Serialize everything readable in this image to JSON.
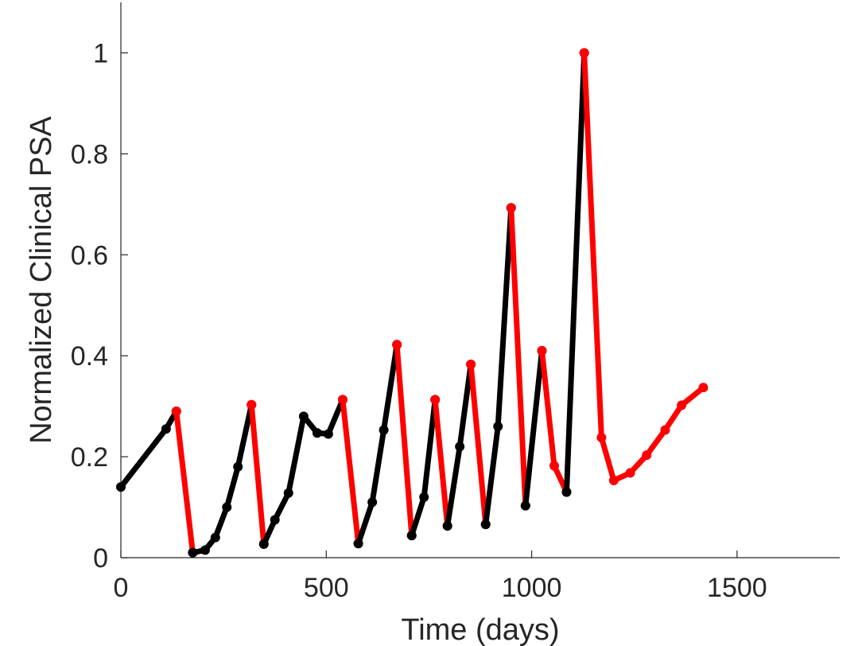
{
  "chart_data": {
    "type": "line",
    "title": "",
    "xlabel": "Time (days)",
    "ylabel": "Normalized Clinical PSA",
    "xlim": [
      0,
      1750
    ],
    "ylim": [
      0,
      1.1
    ],
    "xticks": [
      0,
      500,
      1000,
      1500
    ],
    "xtick_labels": [
      "0",
      "500",
      "1000",
      "1500"
    ],
    "yticks": [
      0,
      0.2,
      0.4,
      0.6,
      0.8,
      1
    ],
    "ytick_labels": [
      "0",
      "0.2",
      "0.4",
      "0.6",
      "0.8",
      "1"
    ],
    "grid": false,
    "legend": "none",
    "colors": {
      "on_treatment": "#ff0000",
      "off_treatment": "#000000",
      "axis": "#262626"
    },
    "series": [
      {
        "color": "#000000",
        "points": [
          [
            0,
            0.14
          ],
          [
            110,
            0.255
          ],
          [
            135,
            0.29
          ]
        ]
      },
      {
        "color": "#ff0000",
        "points": [
          [
            135,
            0.29
          ],
          [
            175,
            0.01
          ]
        ]
      },
      {
        "color": "#000000",
        "points": [
          [
            175,
            0.01
          ],
          [
            205,
            0.015
          ],
          [
            230,
            0.04
          ],
          [
            258,
            0.1
          ],
          [
            285,
            0.18
          ],
          [
            318,
            0.303
          ]
        ]
      },
      {
        "color": "#ff0000",
        "points": [
          [
            318,
            0.303
          ],
          [
            348,
            0.027
          ]
        ]
      },
      {
        "color": "#000000",
        "points": [
          [
            348,
            0.027
          ],
          [
            375,
            0.075
          ],
          [
            408,
            0.128
          ],
          [
            445,
            0.28
          ],
          [
            478,
            0.247
          ],
          [
            505,
            0.245
          ],
          [
            540,
            0.313
          ]
        ]
      },
      {
        "color": "#ff0000",
        "points": [
          [
            540,
            0.313
          ],
          [
            578,
            0.028
          ]
        ]
      },
      {
        "color": "#000000",
        "points": [
          [
            578,
            0.028
          ],
          [
            612,
            0.11
          ],
          [
            640,
            0.253
          ],
          [
            672,
            0.422
          ]
        ]
      },
      {
        "color": "#ff0000",
        "points": [
          [
            672,
            0.422
          ],
          [
            708,
            0.044
          ]
        ]
      },
      {
        "color": "#000000",
        "points": [
          [
            708,
            0.044
          ],
          [
            738,
            0.12
          ],
          [
            765,
            0.313
          ]
        ]
      },
      {
        "color": "#ff0000",
        "points": [
          [
            765,
            0.313
          ],
          [
            795,
            0.063
          ]
        ]
      },
      {
        "color": "#000000",
        "points": [
          [
            795,
            0.063
          ],
          [
            825,
            0.22
          ],
          [
            852,
            0.383
          ]
        ]
      },
      {
        "color": "#ff0000",
        "points": [
          [
            852,
            0.383
          ],
          [
            888,
            0.066
          ]
        ]
      },
      {
        "color": "#000000",
        "points": [
          [
            888,
            0.066
          ],
          [
            918,
            0.26
          ],
          [
            950,
            0.693
          ]
        ]
      },
      {
        "color": "#ff0000",
        "points": [
          [
            950,
            0.693
          ],
          [
            985,
            0.103
          ]
        ]
      },
      {
        "color": "#000000",
        "points": [
          [
            985,
            0.103
          ],
          [
            1025,
            0.41
          ]
        ]
      },
      {
        "color": "#ff0000",
        "points": [
          [
            1025,
            0.41
          ],
          [
            1055,
            0.182
          ],
          [
            1085,
            0.13
          ]
        ]
      },
      {
        "color": "#000000",
        "points": [
          [
            1085,
            0.13
          ],
          [
            1128,
            1.0
          ]
        ]
      },
      {
        "color": "#ff0000",
        "points": [
          [
            1128,
            1.0
          ],
          [
            1170,
            0.238
          ],
          [
            1200,
            0.153
          ],
          [
            1240,
            0.168
          ],
          [
            1280,
            0.203
          ],
          [
            1325,
            0.253
          ],
          [
            1365,
            0.302
          ],
          [
            1418,
            0.337
          ]
        ]
      }
    ]
  }
}
